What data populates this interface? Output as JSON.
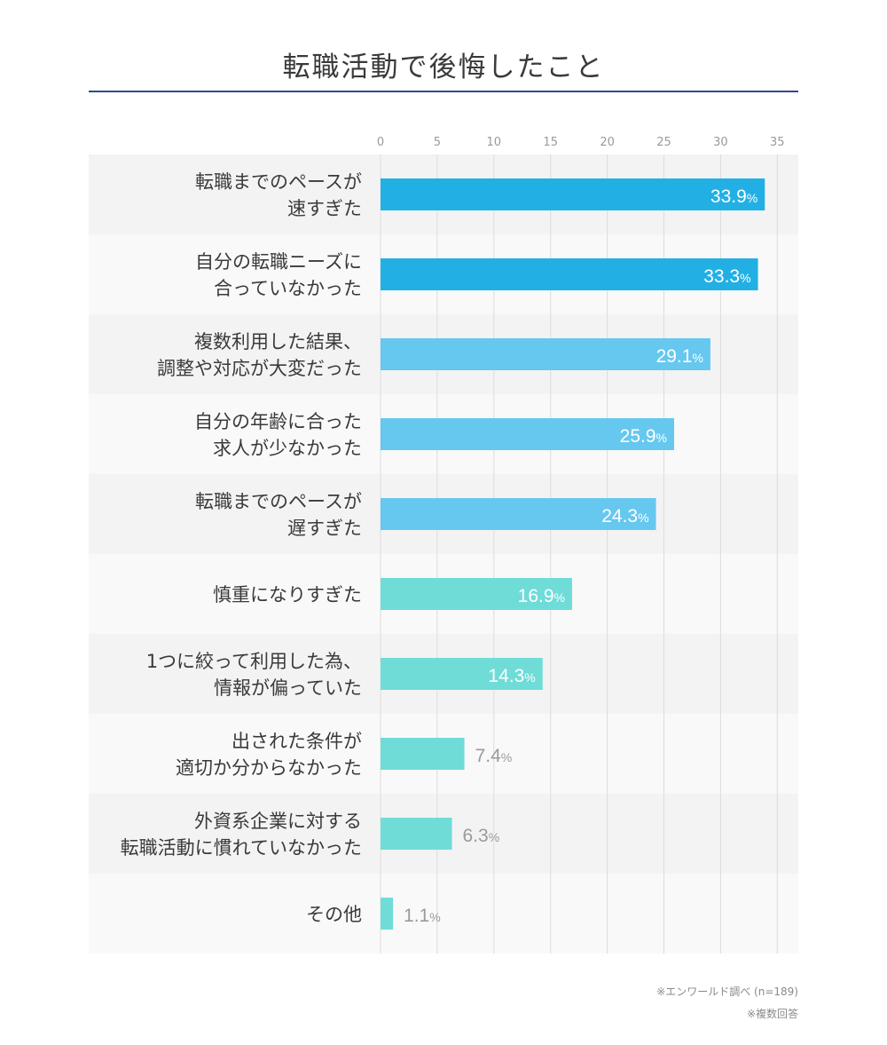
{
  "title": "転職活動で後悔したこと",
  "chart_data": {
    "type": "bar",
    "orientation": "horizontal",
    "title": "転職活動で後悔したこと",
    "x_ticks": [
      "0",
      "5",
      "10",
      "15",
      "20",
      "25",
      "30",
      "35"
    ],
    "xlim": [
      0,
      35
    ],
    "grid": true,
    "value_suffix": "%",
    "categories": [
      [
        "転職までのペースが",
        "速すぎた"
      ],
      [
        "自分の転職ニーズに",
        "合っていなかった"
      ],
      [
        "複数利用した結果、",
        "調整や対応が大変だった"
      ],
      [
        "自分の年齢に合った",
        "求人が少なかった"
      ],
      [
        "転職までのペースが",
        "遅すぎた"
      ],
      [
        "慎重になりすぎた"
      ],
      [
        "1つに絞って利用した為、",
        "情報が偏っていた"
      ],
      [
        "出された条件が",
        "適切か分からなかった"
      ],
      [
        "外資系企業に対する",
        "転職活動に慣れていなかった"
      ],
      [
        "その他"
      ]
    ],
    "values": [
      33.9,
      33.3,
      29.1,
      25.9,
      24.3,
      16.9,
      14.3,
      7.4,
      6.3,
      1.1
    ],
    "value_labels": [
      "33.9",
      "33.3",
      "29.1",
      "25.9",
      "24.3",
      "16.9",
      "14.3",
      "7.4",
      "6.3",
      "1.1"
    ],
    "colors": {
      "tier1": "#22b0e4",
      "tier2": "#66c8ee",
      "tier3": "#6fdcd8",
      "label_inside": "#ffffff",
      "label_outside": "#9a9a9a",
      "grid": "#dcdcdc",
      "row_even": "#f3f3f3",
      "row_odd": "#f9f9f9",
      "tick": "#9a9a9a"
    },
    "tiers": [
      1,
      1,
      2,
      2,
      2,
      3,
      3,
      3,
      3,
      3
    ]
  },
  "notes": {
    "source": "※エンワールド調べ (n=189)",
    "multiple": "※複数回答"
  }
}
